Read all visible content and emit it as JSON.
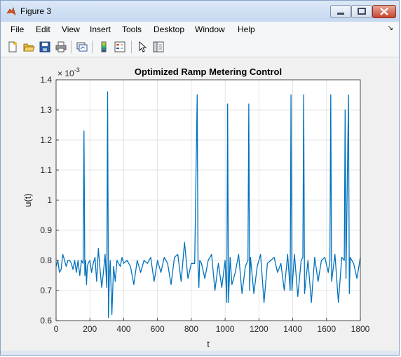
{
  "window": {
    "title": "Figure 3"
  },
  "menu": {
    "items": [
      "File",
      "Edit",
      "View",
      "Insert",
      "Tools",
      "Desktop",
      "Window",
      "Help"
    ]
  },
  "toolbar": {
    "icons": [
      "new-figure-icon",
      "open-file-icon",
      "save-icon",
      "print-icon",
      "link-plot-icon",
      "colorbar-icon",
      "legend-icon",
      "pointer-icon",
      "property-editor-icon"
    ]
  },
  "chart_data": {
    "type": "line",
    "title": "Optimized Ramp Metering Control",
    "xlabel": "t",
    "ylabel": "u(t)",
    "y_exponent_label": "× 10",
    "y_exponent_power": "-3",
    "xlim": [
      0,
      1800
    ],
    "ylim": [
      0.6,
      1.4
    ],
    "xticks": [
      "0",
      "200",
      "400",
      "600",
      "800",
      "1000",
      "1200",
      "1400",
      "1600",
      "1800"
    ],
    "yticks": [
      "0.6",
      "0.7",
      "0.8",
      "0.9",
      "1",
      "1.1",
      "1.2",
      "1.3",
      "1.4"
    ],
    "grid": true,
    "color": "#0072bd",
    "series": [
      {
        "x": [
          0,
          10,
          20,
          30,
          40,
          50,
          60,
          70,
          80,
          90,
          100,
          110,
          120,
          130,
          140,
          150,
          160,
          165,
          170,
          175,
          180,
          185,
          190,
          200,
          210,
          220,
          230,
          240,
          250,
          260,
          270,
          280,
          290,
          300,
          305,
          310,
          315,
          320,
          330,
          340,
          350,
          360,
          370,
          380,
          390,
          400,
          420,
          440,
          460,
          480,
          500,
          520,
          540,
          560,
          580,
          600,
          620,
          640,
          660,
          680,
          700,
          720,
          740,
          760,
          780,
          800,
          820,
          835,
          840,
          845,
          850,
          860,
          880,
          900,
          920,
          940,
          960,
          980,
          1000,
          1010,
          1015,
          1020,
          1030,
          1040,
          1060,
          1080,
          1100,
          1120,
          1135,
          1140,
          1145,
          1150,
          1170,
          1190,
          1210,
          1230,
          1250,
          1270,
          1290,
          1310,
          1330,
          1350,
          1370,
          1385,
          1390,
          1395,
          1410,
          1430,
          1450,
          1460,
          1465,
          1470,
          1490,
          1510,
          1530,
          1550,
          1570,
          1590,
          1610,
          1620,
          1625,
          1630,
          1650,
          1670,
          1690,
          1705,
          1710,
          1715,
          1730,
          1735,
          1740,
          1760,
          1780,
          1800
        ],
        "y": [
          0.78,
          0.8,
          0.76,
          0.77,
          0.82,
          0.8,
          0.78,
          0.8,
          0.8,
          0.79,
          0.77,
          0.8,
          0.76,
          0.8,
          0.75,
          0.8,
          0.79,
          1.23,
          0.75,
          0.8,
          0.72,
          0.78,
          0.79,
          0.8,
          0.76,
          0.79,
          0.81,
          0.73,
          0.84,
          0.77,
          0.71,
          0.76,
          0.82,
          0.71,
          1.36,
          0.61,
          0.74,
          0.8,
          0.62,
          0.78,
          0.73,
          0.8,
          0.79,
          0.78,
          0.81,
          0.79,
          0.8,
          0.78,
          0.72,
          0.8,
          0.76,
          0.8,
          0.79,
          0.81,
          0.73,
          0.8,
          0.76,
          0.81,
          0.79,
          0.72,
          0.81,
          0.82,
          0.73,
          0.86,
          0.74,
          0.79,
          0.79,
          1.35,
          0.78,
          0.71,
          0.8,
          0.79,
          0.74,
          0.8,
          0.82,
          0.7,
          0.79,
          0.71,
          0.8,
          0.66,
          1.32,
          0.66,
          0.81,
          0.72,
          0.76,
          0.82,
          0.69,
          0.78,
          0.8,
          1.32,
          0.7,
          0.81,
          0.69,
          0.78,
          0.82,
          0.66,
          0.79,
          0.8,
          0.81,
          0.76,
          0.79,
          0.7,
          0.82,
          0.7,
          1.35,
          0.7,
          0.82,
          0.68,
          0.8,
          0.81,
          1.35,
          0.69,
          0.8,
          0.66,
          0.81,
          0.73,
          0.8,
          0.81,
          0.76,
          0.8,
          1.35,
          0.73,
          0.82,
          0.66,
          0.81,
          0.8,
          1.3,
          0.74,
          1.35,
          0.69,
          0.81,
          0.79,
          0.74,
          0.81
        ]
      }
    ]
  }
}
